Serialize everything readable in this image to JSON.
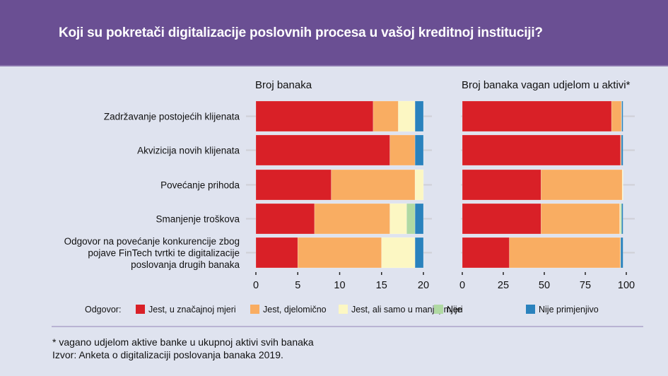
{
  "header": {
    "title": "Koji su pokretači digitalizacije poslovnih procesa u vašoj kreditnoj instituciji?"
  },
  "colors": {
    "header_bg": "#6a4f93",
    "page_bg": "#dfe3ef",
    "series": [
      "#d92027",
      "#f9ad62",
      "#fcf7c3",
      "#b0d9a3",
      "#2a82bd"
    ]
  },
  "chart_data": [
    {
      "type": "bar",
      "orientation": "horizontal",
      "stacked": true,
      "title": "Broj banaka",
      "categories": [
        "Zadržavanje postojećih klijenata",
        "Akvizicija novih klijenata",
        "Povećanje prihoda",
        "Smanjenje troškova",
        "Odgovor na povećanje konkurencije zbog pojave FinTech tvrtki te digitalizacije poslovanja drugih banaka"
      ],
      "series": [
        {
          "name": "Jest, u značajnoj mjeri",
          "values": [
            14,
            16,
            9,
            7,
            5
          ]
        },
        {
          "name": "Jest, djelomično",
          "values": [
            3,
            3,
            10,
            9,
            10
          ]
        },
        {
          "name": "Jest, ali samo u manjoj mjeri",
          "values": [
            2,
            0,
            1,
            2,
            4
          ]
        },
        {
          "name": "Nije",
          "values": [
            0,
            0,
            0,
            1,
            0
          ]
        },
        {
          "name": "Nije primjenjivo",
          "values": [
            1,
            1,
            0,
            1,
            1
          ]
        }
      ],
      "xlim": [
        0,
        20
      ],
      "xticks": [
        "0",
        "5",
        "10",
        "15",
        "20"
      ],
      "xlabel": "",
      "ylabel": ""
    },
    {
      "type": "bar",
      "orientation": "horizontal",
      "stacked": true,
      "title": "Broj banaka vagan udjelom u aktivi*",
      "categories": [
        "Zadržavanje postojećih klijenata",
        "Akvizicija novih klijenata",
        "Povećanje prihoda",
        "Smanjenje troškova",
        "Odgovor na povećanje konkurencije zbog pojave FinTech tvrtki te digitalizacije poslovanja drugih banaka"
      ],
      "series": [
        {
          "name": "Jest, u značajnoj mjeri",
          "values": [
            91,
            96.5,
            48,
            48,
            28.7
          ]
        },
        {
          "name": "Jest, djelomično",
          "values": [
            6,
            0.5,
            49.5,
            48,
            67.7
          ]
        },
        {
          "name": "Jest, ali samo u manjoj mjeri",
          "values": [
            0.2,
            0,
            0.5,
            0.5,
            0.2
          ]
        },
        {
          "name": "Nije",
          "values": [
            0,
            0,
            0,
            0.7,
            0
          ]
        },
        {
          "name": "Nije primjenjivo",
          "values": [
            0.8,
            1,
            0,
            0.8,
            1.4
          ]
        }
      ],
      "xlim": [
        0,
        100
      ],
      "xticks": [
        "0",
        "25",
        "50",
        "75",
        "100"
      ],
      "xlabel": "",
      "ylabel": ""
    }
  ],
  "category_lines": [
    [
      "Zadržavanje postojećih klijenata"
    ],
    [
      "Akvizicija novih klijenata"
    ],
    [
      "Povećanje prihoda"
    ],
    [
      "Smanjenje troškova"
    ],
    [
      "Odgovor na povećanje konkurencije zbog",
      "pojave FinTech tvrtki te digitalizacije",
      "poslovanja drugih banaka"
    ]
  ],
  "legend": {
    "title": "Odgovor:",
    "items": [
      "Jest, u značajnoj mjeri",
      "Jest, djelomično",
      "Jest, ali samo u manjoj mjeri",
      "Nije",
      "Nije primjenjivo"
    ],
    "placement": "bottom"
  },
  "footnotes": {
    "note": "* vagano udjelom aktive banke u ukupnoj aktivi svih banaka",
    "source": "Izvor: Anketa o digitalizaciji poslovanja banaka 2019."
  }
}
